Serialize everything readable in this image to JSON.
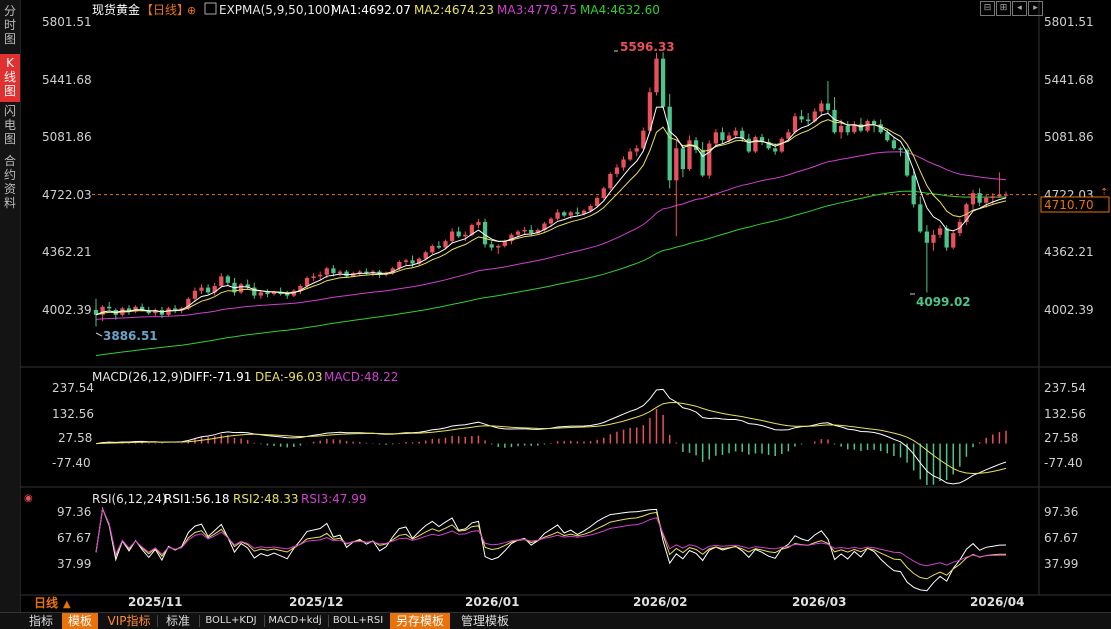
{
  "left_nav": [
    {
      "label": "分\n时\n图",
      "active": false
    },
    {
      "label": "K\n线\n图",
      "active": true
    },
    {
      "label": "闪\n电\n图",
      "active": false
    },
    {
      "label": "合\n约\n资\n料",
      "active": false
    }
  ],
  "header": {
    "symbol": "现货黄金",
    "period": "【日线】",
    "indicator": "EXPMA(5,9,50,100)",
    "ma1": "MA1:4692.07",
    "ma2": "MA2:4674.23",
    "ma3": "MA3:4779.75",
    "ma4": "MA4:4632.60"
  },
  "macd_header": {
    "name": "MACD(26,12,9)",
    "diff": "DIFF:-71.91",
    "dea": "DEA:-96.03",
    "macd": "MACD:48.22"
  },
  "rsi_header": {
    "name": "RSI(6,12,24)",
    "rsi1": "RSI1:56.18",
    "rsi2": "RSI2:48.33",
    "rsi3": "RSI3:47.99"
  },
  "price_axis_labels": [
    "5801.51",
    "5441.68",
    "5081.86",
    "4722.03",
    "4362.21",
    "4002.39"
  ],
  "macd_axis_labels": [
    "237.54",
    "132.56",
    "27.58",
    "-77.40"
  ],
  "rsi_axis_labels": [
    "97.36",
    "67.67",
    "37.99"
  ],
  "current_price": "4710.70",
  "annotations": {
    "high": "5596.33",
    "low": "4099.02",
    "start_low": "3886.51"
  },
  "date_labels": [
    "2025/11",
    "2025/12",
    "2026/01",
    "2026/02",
    "2026/03",
    "2026/04"
  ],
  "period_selector": "日线",
  "bottom_tabs": [
    {
      "label": "指标",
      "style": "plain"
    },
    {
      "label": "模板",
      "style": "orange"
    },
    {
      "label": "VIP指标",
      "style": "vip"
    },
    {
      "label": "标准",
      "style": "plain"
    },
    {
      "label": "BOLL+KDJ",
      "style": "small"
    },
    {
      "label": "MACD+kdj",
      "style": "small"
    },
    {
      "label": "BOLL+RSI",
      "style": "small"
    },
    {
      "label": "另存模板",
      "style": "orange"
    },
    {
      "label": "管理模板",
      "style": "plain"
    }
  ],
  "colors": {
    "up": "#e8505b",
    "down": "#4cc48a",
    "ma1": "#ffffff",
    "ma2": "#e8e05a",
    "ma3": "#d040d0",
    "ma4": "#30d030",
    "accent": "#e8730c"
  },
  "chart_data": [
    {
      "type": "candlestick",
      "title": "现货黄金 日线",
      "x_ticks": [
        "2025/11",
        "2025/12",
        "2026/01",
        "2026/02",
        "2026/03",
        "2026/04"
      ],
      "y_ticks": [
        5801.51,
        5441.68,
        5081.86,
        4722.03,
        4362.21,
        4002.39
      ],
      "ylim": [
        3880,
        5801.51
      ],
      "last_price": 4710.7,
      "ohlc": [
        [
          3990,
          4060,
          3886.51,
          3960
        ],
        [
          3960,
          4020,
          3920,
          4010
        ],
        [
          4010,
          4040,
          3990,
          4000
        ],
        [
          3990,
          4000,
          3930,
          3960
        ],
        [
          3960,
          4010,
          3950,
          4000
        ],
        [
          4000,
          4020,
          3960,
          3980
        ],
        [
          3980,
          4020,
          3970,
          4010
        ],
        [
          4010,
          4030,
          3980,
          3990
        ],
        [
          3990,
          4010,
          3960,
          3970
        ],
        [
          3970,
          4000,
          3950,
          3990
        ],
        [
          3990,
          4010,
          3940,
          3960
        ],
        [
          3960,
          4010,
          3950,
          4000
        ],
        [
          4000,
          4020,
          3970,
          3990
        ],
        [
          3990,
          4010,
          3970,
          4000
        ],
        [
          4000,
          4070,
          3990,
          4060
        ],
        [
          4060,
          4130,
          4040,
          4110
        ],
        [
          4110,
          4150,
          4090,
          4130
        ],
        [
          4130,
          4150,
          4090,
          4100
        ],
        [
          4100,
          4160,
          4080,
          4140
        ],
        [
          4140,
          4220,
          4130,
          4200
        ],
        [
          4200,
          4210,
          4140,
          4160
        ],
        [
          4160,
          4190,
          4080,
          4100
        ],
        [
          4100,
          4160,
          4090,
          4150
        ],
        [
          4150,
          4180,
          4120,
          4130
        ],
        [
          4130,
          4160,
          4060,
          4080
        ],
        [
          4080,
          4110,
          4060,
          4100
        ],
        [
          4100,
          4120,
          4070,
          4090
        ],
        [
          4090,
          4110,
          4080,
          4100
        ],
        [
          4100,
          4130,
          4080,
          4090
        ],
        [
          4090,
          4110,
          4060,
          4080
        ],
        [
          4080,
          4120,
          4070,
          4110
        ],
        [
          4110,
          4150,
          4090,
          4140
        ],
        [
          4140,
          4200,
          4130,
          4190
        ],
        [
          4190,
          4220,
          4170,
          4200
        ],
        [
          4200,
          4230,
          4180,
          4210
        ],
        [
          4210,
          4260,
          4190,
          4250
        ],
        [
          4250,
          4270,
          4200,
          4220
        ],
        [
          4220,
          4240,
          4200,
          4230
        ],
        [
          4230,
          4240,
          4190,
          4200
        ],
        [
          4200,
          4230,
          4200,
          4220
        ],
        [
          4220,
          4240,
          4200,
          4230
        ],
        [
          4230,
          4250,
          4210,
          4220
        ],
        [
          4220,
          4240,
          4200,
          4230
        ],
        [
          4230,
          4240,
          4190,
          4210
        ],
        [
          4210,
          4230,
          4200,
          4220
        ],
        [
          4220,
          4260,
          4210,
          4250
        ],
        [
          4250,
          4300,
          4240,
          4290
        ],
        [
          4290,
          4310,
          4270,
          4300
        ],
        [
          4300,
          4330,
          4260,
          4280
        ],
        [
          4280,
          4320,
          4270,
          4310
        ],
        [
          4310,
          4360,
          4300,
          4350
        ],
        [
          4350,
          4400,
          4340,
          4390
        ],
        [
          4390,
          4420,
          4370,
          4380
        ],
        [
          4380,
          4430,
          4370,
          4420
        ],
        [
          4420,
          4500,
          4410,
          4480
        ],
        [
          4480,
          4510,
          4440,
          4450
        ],
        [
          4450,
          4480,
          4420,
          4460
        ],
        [
          4460,
          4530,
          4450,
          4520
        ],
        [
          4520,
          4560,
          4500,
          4540
        ],
        [
          4540,
          4560,
          4380,
          4400
        ],
        [
          4400,
          4420,
          4360,
          4380
        ],
        [
          4380,
          4400,
          4340,
          4390
        ],
        [
          4390,
          4430,
          4380,
          4420
        ],
        [
          4420,
          4470,
          4400,
          4460
        ],
        [
          4460,
          4490,
          4440,
          4480
        ],
        [
          4480,
          4510,
          4460,
          4490
        ],
        [
          4490,
          4520,
          4450,
          4470
        ],
        [
          4470,
          4500,
          4460,
          4490
        ],
        [
          4490,
          4540,
          4480,
          4530
        ],
        [
          4530,
          4570,
          4510,
          4560
        ],
        [
          4560,
          4620,
          4550,
          4600
        ],
        [
          4600,
          4610,
          4570,
          4580
        ],
        [
          4580,
          4610,
          4560,
          4600
        ],
        [
          4600,
          4630,
          4580,
          4590
        ],
        [
          4590,
          4620,
          4580,
          4610
        ],
        [
          4610,
          4650,
          4600,
          4640
        ],
        [
          4640,
          4700,
          4630,
          4690
        ],
        [
          4690,
          4760,
          4680,
          4750
        ],
        [
          4750,
          4850,
          4740,
          4840
        ],
        [
          4840,
          4900,
          4820,
          4880
        ],
        [
          4880,
          4950,
          4860,
          4930
        ],
        [
          4930,
          5000,
          4920,
          4980
        ],
        [
          4980,
          5020,
          4950,
          5000
        ],
        [
          5000,
          5130,
          4990,
          5110
        ],
        [
          5110,
          5380,
          5100,
          5350
        ],
        [
          5350,
          5596.33,
          5330,
          5560
        ],
        [
          5560,
          5600,
          5250,
          5260
        ],
        [
          5260,
          5340,
          4750,
          4800
        ],
        [
          4800,
          5050,
          4450,
          5000
        ],
        [
          5000,
          5020,
          4820,
          4870
        ],
        [
          4870,
          5080,
          4860,
          5050
        ],
        [
          5050,
          5070,
          4970,
          4990
        ],
        [
          4990,
          5040,
          4820,
          4830
        ],
        [
          4830,
          5050,
          4810,
          5030
        ],
        [
          5030,
          5120,
          5020,
          5100
        ],
        [
          5100,
          5130,
          5030,
          5050
        ],
        [
          5050,
          5100,
          5030,
          5080
        ],
        [
          5080,
          5130,
          5060,
          5110
        ],
        [
          5110,
          5130,
          5040,
          5060
        ],
        [
          5060,
          5090,
          4970,
          4980
        ],
        [
          4980,
          5080,
          4970,
          5070
        ],
        [
          5070,
          5090,
          5020,
          5040
        ],
        [
          5040,
          5060,
          4990,
          5000
        ],
        [
          5000,
          5030,
          4960,
          4980
        ],
        [
          4980,
          5070,
          4970,
          5060
        ],
        [
          5060,
          5120,
          5050,
          5100
        ],
        [
          5100,
          5220,
          5090,
          5200
        ],
        [
          5200,
          5240,
          5160,
          5180
        ],
        [
          5180,
          5220,
          5140,
          5170
        ],
        [
          5170,
          5250,
          5160,
          5230
        ],
        [
          5230,
          5300,
          5200,
          5280
        ],
        [
          5280,
          5420,
          5220,
          5240
        ],
        [
          5240,
          5320,
          5090,
          5100
        ],
        [
          5100,
          5180,
          5060,
          5140
        ],
        [
          5140,
          5170,
          5080,
          5100
        ],
        [
          5100,
          5170,
          5090,
          5150
        ],
        [
          5150,
          5190,
          5100,
          5110
        ],
        [
          5110,
          5180,
          5100,
          5170
        ],
        [
          5170,
          5180,
          5100,
          5150
        ],
        [
          5150,
          5180,
          5090,
          5100
        ],
        [
          5100,
          5120,
          5040,
          5050
        ],
        [
          5050,
          5070,
          4990,
          5000
        ],
        [
          5000,
          5010,
          4950,
          4990
        ],
        [
          4990,
          5000,
          4820,
          4830
        ],
        [
          4830,
          4870,
          4630,
          4650
        ],
        [
          4650,
          4700,
          4470,
          4480
        ],
        [
          4480,
          4520,
          4099.02,
          4410
        ],
        [
          4410,
          4490,
          4360,
          4460
        ],
        [
          4460,
          4520,
          4440,
          4500
        ],
        [
          4500,
          4520,
          4360,
          4380
        ],
        [
          4380,
          4480,
          4370,
          4470
        ],
        [
          4470,
          4560,
          4450,
          4540
        ],
        [
          4540,
          4660,
          4520,
          4650
        ],
        [
          4650,
          4740,
          4620,
          4720
        ],
        [
          4720,
          4750,
          4640,
          4660
        ],
        [
          4660,
          4710,
          4630,
          4690
        ],
        [
          4690,
          4720,
          4650,
          4700
        ],
        [
          4700,
          4850,
          4690,
          4710
        ],
        [
          4710,
          4730,
          4690,
          4710.7
        ]
      ],
      "rsi_ticks": [
        97.36,
        67.67,
        37.99
      ]
    }
  ]
}
